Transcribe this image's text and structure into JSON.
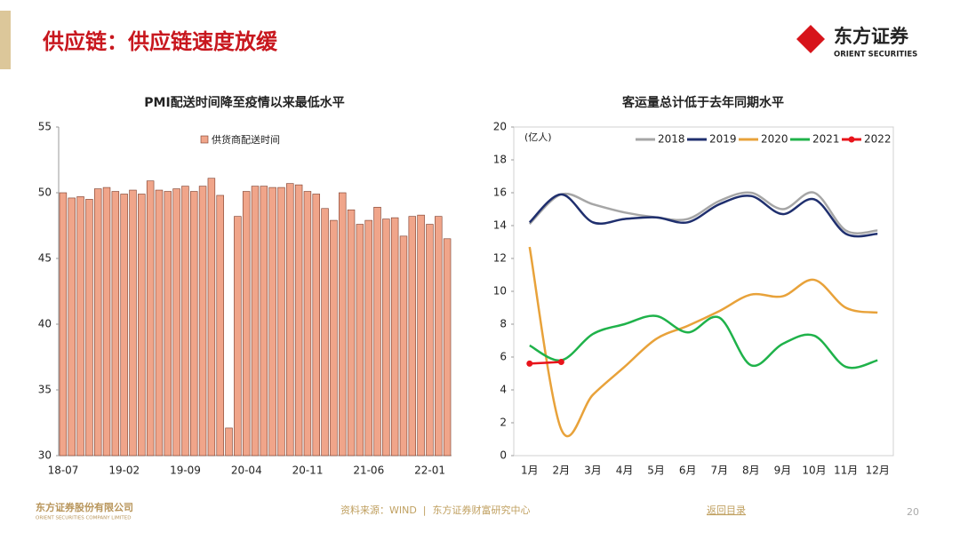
{
  "header": {
    "title": "供应链：供应链速度放缓",
    "logo_cn": "东方证券",
    "logo_en": "ORIENT SECURITIES"
  },
  "footer": {
    "company_cn": "东方证券股份有限公司",
    "company_en": "ORIENT SECURITIES COMPANY LIMITED",
    "source": "资料来源：WIND  |  东方证券财富研究中心",
    "back": "返回目录",
    "page": "20"
  },
  "chart_data": [
    {
      "type": "bar",
      "title": "PMI配送时间降至疫情以来最低水平",
      "categories": [
        "18-07",
        null,
        null,
        null,
        null,
        null,
        null,
        "19-02",
        null,
        null,
        null,
        null,
        null,
        null,
        "19-09",
        null,
        null,
        null,
        null,
        null,
        null,
        "20-04",
        null,
        null,
        null,
        null,
        null,
        null,
        "20-11",
        null,
        null,
        null,
        null,
        null,
        null,
        "21-06",
        null,
        null,
        null,
        null,
        null,
        null,
        "22-01",
        null,
        null
      ],
      "series": [
        {
          "name": "供货商配送时间",
          "color": "#f0a58a",
          "values": [
            50.0,
            49.6,
            49.7,
            49.5,
            50.3,
            50.4,
            50.1,
            49.9,
            50.2,
            49.9,
            50.9,
            50.2,
            50.1,
            50.3,
            50.5,
            50.1,
            50.5,
            51.1,
            49.8,
            32.1,
            48.2,
            50.1,
            50.5,
            50.5,
            50.4,
            50.4,
            50.7,
            50.6,
            50.1,
            49.9,
            48.8,
            47.9,
            50.0,
            48.7,
            47.6,
            47.9,
            48.9,
            48.0,
            48.1,
            46.7,
            48.2,
            48.3,
            47.6,
            48.2,
            46.5
          ]
        }
      ],
      "ylim": [
        30,
        55
      ],
      "yticks": [
        30,
        35,
        40,
        45,
        50,
        55
      ],
      "grid": false
    },
    {
      "type": "line",
      "title": "客运量总计低于去年同期水平",
      "annotation": "(亿人)",
      "categories": [
        "1月",
        "2月",
        "3月",
        "4月",
        "5月",
        "6月",
        "7月",
        "8月",
        "9月",
        "10月",
        "11月",
        "12月"
      ],
      "series": [
        {
          "name": "2018",
          "color": "#a6a6a6",
          "values": [
            14.1,
            15.9,
            15.3,
            14.8,
            14.5,
            14.4,
            15.5,
            16.0,
            15.0,
            16.0,
            13.7,
            13.7
          ]
        },
        {
          "name": "2019",
          "color": "#1f2f6e",
          "values": [
            14.2,
            15.9,
            14.2,
            14.4,
            14.5,
            14.2,
            15.3,
            15.8,
            14.7,
            15.6,
            13.5,
            13.5
          ]
        },
        {
          "name": "2020",
          "color": "#e8a23a",
          "values": [
            12.7,
            1.6,
            3.7,
            5.4,
            7.1,
            7.9,
            8.8,
            9.8,
            9.7,
            10.7,
            9.0,
            8.7
          ]
        },
        {
          "name": "2021",
          "color": "#1fb24a",
          "values": [
            6.7,
            5.8,
            7.4,
            8.0,
            8.5,
            7.5,
            8.4,
            5.5,
            6.8,
            7.3,
            5.4,
            5.8
          ]
        },
        {
          "name": "2022",
          "color": "#e8141b",
          "marker": true,
          "values": [
            5.6,
            5.7,
            null,
            null,
            null,
            null,
            null,
            null,
            null,
            null,
            null,
            null
          ]
        }
      ],
      "ylim": [
        0,
        20
      ],
      "yticks": [
        0,
        2,
        4,
        6,
        8,
        10,
        12,
        14,
        16,
        18,
        20
      ],
      "grid": false,
      "smooth": true
    }
  ]
}
